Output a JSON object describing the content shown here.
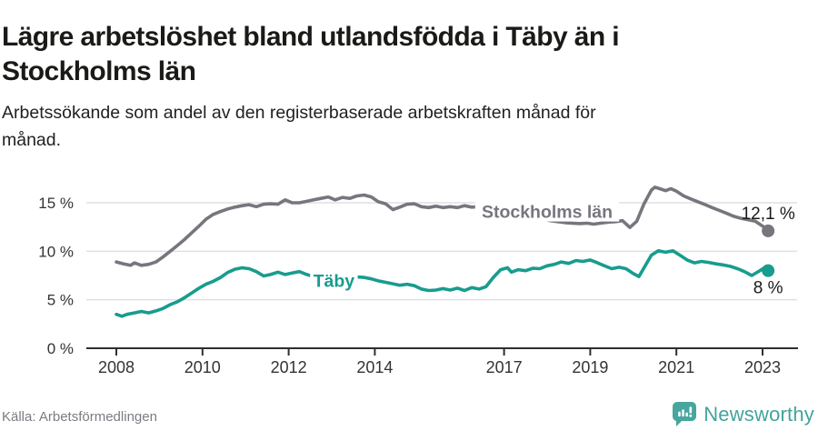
{
  "header": {
    "title_lines": [
      "Lägre arbetslöshet bland utlandsfödda i Täby än i",
      "Stockholms län"
    ],
    "subtitle_lines": [
      "Arbetssökande som andel av den registerbaserade arbetskraften månad för",
      "månad."
    ]
  },
  "footer": {
    "source": "Källa: Arbetsförmedlingen",
    "brand": "Newsworthy",
    "brand_icon": "newsworthy-speech-bubble-bar-chart",
    "brand_color": "#43a49b"
  },
  "colors": {
    "axis": "#2f2f2f",
    "gridline": "#e0e0e0",
    "tick_label": "#333333",
    "end_label": "#1a1a1a"
  },
  "chart_data": {
    "type": "line",
    "title": "Lägre arbetslöshet bland utlandsfödda i Täby än i Stockholms län",
    "subtitle": "Arbetssökande som andel av den registerbaserade arbetskraften månad för månad.",
    "unit": "%",
    "xlabel": "",
    "ylabel": "",
    "xlim": [
      2007.3,
      2023.8
    ],
    "ylim": [
      0,
      17
    ],
    "grid": "horizontal",
    "legend_position": "inline-labels",
    "x_ticks": [
      2008,
      2010,
      2012,
      2014,
      2017,
      2019,
      2021,
      2023
    ],
    "y_ticks": [
      0,
      5,
      10,
      15
    ],
    "y_tick_labels": [
      "0 %",
      "5 %",
      "10 %",
      "15 %"
    ],
    "series": [
      {
        "name": "Stockholms län",
        "color": "#76767e",
        "end_label": "12,1 %",
        "end_label_position": "above",
        "end_value": 12.1,
        "label_pos": {
          "x": 2018.0,
          "y": 14.1
        },
        "points": [
          [
            2008.0,
            8.9
          ],
          [
            2008.17,
            8.7
          ],
          [
            2008.33,
            8.55
          ],
          [
            2008.42,
            8.8
          ],
          [
            2008.58,
            8.55
          ],
          [
            2008.75,
            8.65
          ],
          [
            2008.92,
            8.9
          ],
          [
            2009.08,
            9.4
          ],
          [
            2009.25,
            10.0
          ],
          [
            2009.42,
            10.6
          ],
          [
            2009.58,
            11.2
          ],
          [
            2009.75,
            11.9
          ],
          [
            2009.92,
            12.6
          ],
          [
            2010.08,
            13.3
          ],
          [
            2010.25,
            13.8
          ],
          [
            2010.42,
            14.1
          ],
          [
            2010.58,
            14.35
          ],
          [
            2010.75,
            14.55
          ],
          [
            2010.92,
            14.7
          ],
          [
            2011.08,
            14.8
          ],
          [
            2011.25,
            14.6
          ],
          [
            2011.42,
            14.85
          ],
          [
            2011.58,
            14.9
          ],
          [
            2011.75,
            14.85
          ],
          [
            2011.92,
            15.3
          ],
          [
            2012.08,
            15.0
          ],
          [
            2012.25,
            15.0
          ],
          [
            2012.42,
            15.15
          ],
          [
            2012.58,
            15.3
          ],
          [
            2012.75,
            15.45
          ],
          [
            2012.92,
            15.6
          ],
          [
            2013.08,
            15.3
          ],
          [
            2013.25,
            15.55
          ],
          [
            2013.42,
            15.45
          ],
          [
            2013.58,
            15.7
          ],
          [
            2013.75,
            15.8
          ],
          [
            2013.92,
            15.6
          ],
          [
            2014.08,
            15.1
          ],
          [
            2014.25,
            14.9
          ],
          [
            2014.42,
            14.3
          ],
          [
            2014.58,
            14.55
          ],
          [
            2014.75,
            14.85
          ],
          [
            2014.92,
            14.9
          ],
          [
            2015.08,
            14.6
          ],
          [
            2015.25,
            14.5
          ],
          [
            2015.42,
            14.65
          ],
          [
            2015.58,
            14.5
          ],
          [
            2015.75,
            14.6
          ],
          [
            2015.92,
            14.5
          ],
          [
            2016.08,
            14.7
          ],
          [
            2016.25,
            14.55
          ],
          [
            2016.42,
            14.6
          ],
          [
            2016.58,
            14.5
          ],
          [
            2016.75,
            14.35
          ],
          [
            2016.92,
            14.15
          ],
          [
            2017.08,
            13.95
          ],
          [
            2017.25,
            13.8
          ],
          [
            2017.42,
            13.65
          ],
          [
            2017.58,
            13.5
          ],
          [
            2017.75,
            13.4
          ],
          [
            2017.92,
            13.3
          ],
          [
            2018.08,
            13.15
          ],
          [
            2018.25,
            13.05
          ],
          [
            2018.42,
            12.95
          ],
          [
            2018.58,
            12.9
          ],
          [
            2018.75,
            12.85
          ],
          [
            2018.92,
            12.9
          ],
          [
            2019.08,
            12.8
          ],
          [
            2019.25,
            12.9
          ],
          [
            2019.42,
            13.0
          ],
          [
            2019.58,
            13.05
          ],
          [
            2019.75,
            13.15
          ],
          [
            2019.92,
            12.45
          ],
          [
            2020.08,
            13.1
          ],
          [
            2020.25,
            14.9
          ],
          [
            2020.42,
            16.3
          ],
          [
            2020.5,
            16.6
          ],
          [
            2020.58,
            16.5
          ],
          [
            2020.75,
            16.25
          ],
          [
            2020.87,
            16.45
          ],
          [
            2021.0,
            16.2
          ],
          [
            2021.17,
            15.7
          ],
          [
            2021.33,
            15.4
          ],
          [
            2021.5,
            15.1
          ],
          [
            2021.67,
            14.8
          ],
          [
            2021.83,
            14.5
          ],
          [
            2022.0,
            14.2
          ],
          [
            2022.17,
            13.9
          ],
          [
            2022.33,
            13.6
          ],
          [
            2022.5,
            13.4
          ],
          [
            2022.67,
            13.25
          ],
          [
            2022.83,
            13.1
          ],
          [
            2023.0,
            12.6
          ],
          [
            2023.13,
            12.1
          ]
        ]
      },
      {
        "name": "Täby",
        "color": "#189c8e",
        "end_label": "8 %",
        "end_label_position": "below",
        "end_value": 8.0,
        "label_pos": {
          "x": 2013.05,
          "y": 7.0
        },
        "points": [
          [
            2008.0,
            3.5
          ],
          [
            2008.13,
            3.3
          ],
          [
            2008.25,
            3.5
          ],
          [
            2008.42,
            3.65
          ],
          [
            2008.58,
            3.8
          ],
          [
            2008.75,
            3.65
          ],
          [
            2008.92,
            3.85
          ],
          [
            2009.08,
            4.1
          ],
          [
            2009.25,
            4.5
          ],
          [
            2009.42,
            4.8
          ],
          [
            2009.58,
            5.2
          ],
          [
            2009.75,
            5.7
          ],
          [
            2009.92,
            6.2
          ],
          [
            2010.08,
            6.6
          ],
          [
            2010.25,
            6.9
          ],
          [
            2010.42,
            7.3
          ],
          [
            2010.58,
            7.8
          ],
          [
            2010.75,
            8.15
          ],
          [
            2010.92,
            8.3
          ],
          [
            2011.08,
            8.2
          ],
          [
            2011.25,
            7.9
          ],
          [
            2011.42,
            7.45
          ],
          [
            2011.58,
            7.6
          ],
          [
            2011.75,
            7.85
          ],
          [
            2011.92,
            7.6
          ],
          [
            2012.08,
            7.75
          ],
          [
            2012.25,
            7.9
          ],
          [
            2012.42,
            7.6
          ],
          [
            2012.58,
            7.4
          ],
          [
            2012.75,
            7.2
          ],
          [
            2012.92,
            7.05
          ],
          [
            2013.08,
            7.1
          ],
          [
            2013.25,
            7.0
          ],
          [
            2013.42,
            7.2
          ],
          [
            2013.58,
            7.35
          ],
          [
            2013.75,
            7.3
          ],
          [
            2013.92,
            7.15
          ],
          [
            2014.08,
            6.95
          ],
          [
            2014.25,
            6.8
          ],
          [
            2014.42,
            6.65
          ],
          [
            2014.58,
            6.5
          ],
          [
            2014.75,
            6.6
          ],
          [
            2014.92,
            6.45
          ],
          [
            2015.08,
            6.1
          ],
          [
            2015.25,
            5.95
          ],
          [
            2015.42,
            6.0
          ],
          [
            2015.58,
            6.15
          ],
          [
            2015.75,
            6.0
          ],
          [
            2015.92,
            6.2
          ],
          [
            2016.08,
            5.95
          ],
          [
            2016.25,
            6.25
          ],
          [
            2016.42,
            6.1
          ],
          [
            2016.58,
            6.35
          ],
          [
            2016.75,
            7.3
          ],
          [
            2016.92,
            8.1
          ],
          [
            2017.08,
            8.3
          ],
          [
            2017.17,
            7.85
          ],
          [
            2017.33,
            8.1
          ],
          [
            2017.5,
            8.0
          ],
          [
            2017.67,
            8.25
          ],
          [
            2017.83,
            8.2
          ],
          [
            2018.0,
            8.5
          ],
          [
            2018.17,
            8.65
          ],
          [
            2018.33,
            8.9
          ],
          [
            2018.5,
            8.75
          ],
          [
            2018.67,
            9.05
          ],
          [
            2018.83,
            8.95
          ],
          [
            2019.0,
            9.1
          ],
          [
            2019.17,
            8.8
          ],
          [
            2019.33,
            8.5
          ],
          [
            2019.5,
            8.2
          ],
          [
            2019.67,
            8.35
          ],
          [
            2019.83,
            8.2
          ],
          [
            2020.0,
            7.7
          ],
          [
            2020.13,
            7.4
          ],
          [
            2020.25,
            8.3
          ],
          [
            2020.42,
            9.6
          ],
          [
            2020.58,
            10.05
          ],
          [
            2020.75,
            9.9
          ],
          [
            2020.92,
            10.05
          ],
          [
            2021.08,
            9.6
          ],
          [
            2021.25,
            9.1
          ],
          [
            2021.42,
            8.8
          ],
          [
            2021.58,
            8.95
          ],
          [
            2021.75,
            8.85
          ],
          [
            2021.92,
            8.7
          ],
          [
            2022.08,
            8.6
          ],
          [
            2022.25,
            8.45
          ],
          [
            2022.42,
            8.2
          ],
          [
            2022.58,
            7.9
          ],
          [
            2022.75,
            7.5
          ],
          [
            2022.92,
            7.95
          ],
          [
            2023.04,
            8.3
          ],
          [
            2023.13,
            8.0
          ]
        ]
      }
    ]
  }
}
